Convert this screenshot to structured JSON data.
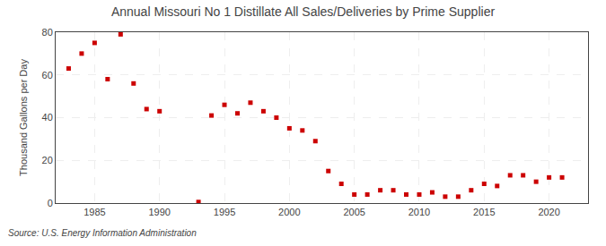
{
  "chart_data": {
    "type": "scatter",
    "title": "Annual Missouri No 1 Distillate All Sales/Deliveries by Prime Supplier",
    "y_label": "Thousand Gallons per Day",
    "annotations": [
      "Source: U.S. Energy Information Administration"
    ],
    "x": [
      1983,
      1984,
      1985,
      1986,
      1987,
      1988,
      1989,
      1990,
      1993,
      1994,
      1995,
      1996,
      1997,
      1998,
      1999,
      2000,
      2001,
      2002,
      2003,
      2004,
      2005,
      2006,
      2007,
      2008,
      2009,
      2010,
      2011,
      2012,
      2013,
      2014,
      2015,
      2016,
      2017,
      2018,
      2019,
      2020,
      2021
    ],
    "values": [
      63,
      70,
      75,
      58,
      79,
      56,
      44,
      43,
      0.5,
      41,
      46,
      42,
      47,
      43,
      40,
      35,
      34,
      29,
      15,
      9,
      4,
      4,
      6,
      6,
      4,
      4,
      5,
      3,
      3,
      6,
      9,
      8,
      13,
      13,
      10,
      12,
      12
    ],
    "color": "#cc0000",
    "marker": "square",
    "xlim": [
      1982,
      2023
    ],
    "xticks": [
      1985,
      1990,
      1995,
      2000,
      2005,
      2010,
      2015,
      2020
    ],
    "ylim": [
      0,
      80
    ],
    "yticks": [
      0,
      20,
      40,
      60,
      80
    ],
    "grid": true
  }
}
